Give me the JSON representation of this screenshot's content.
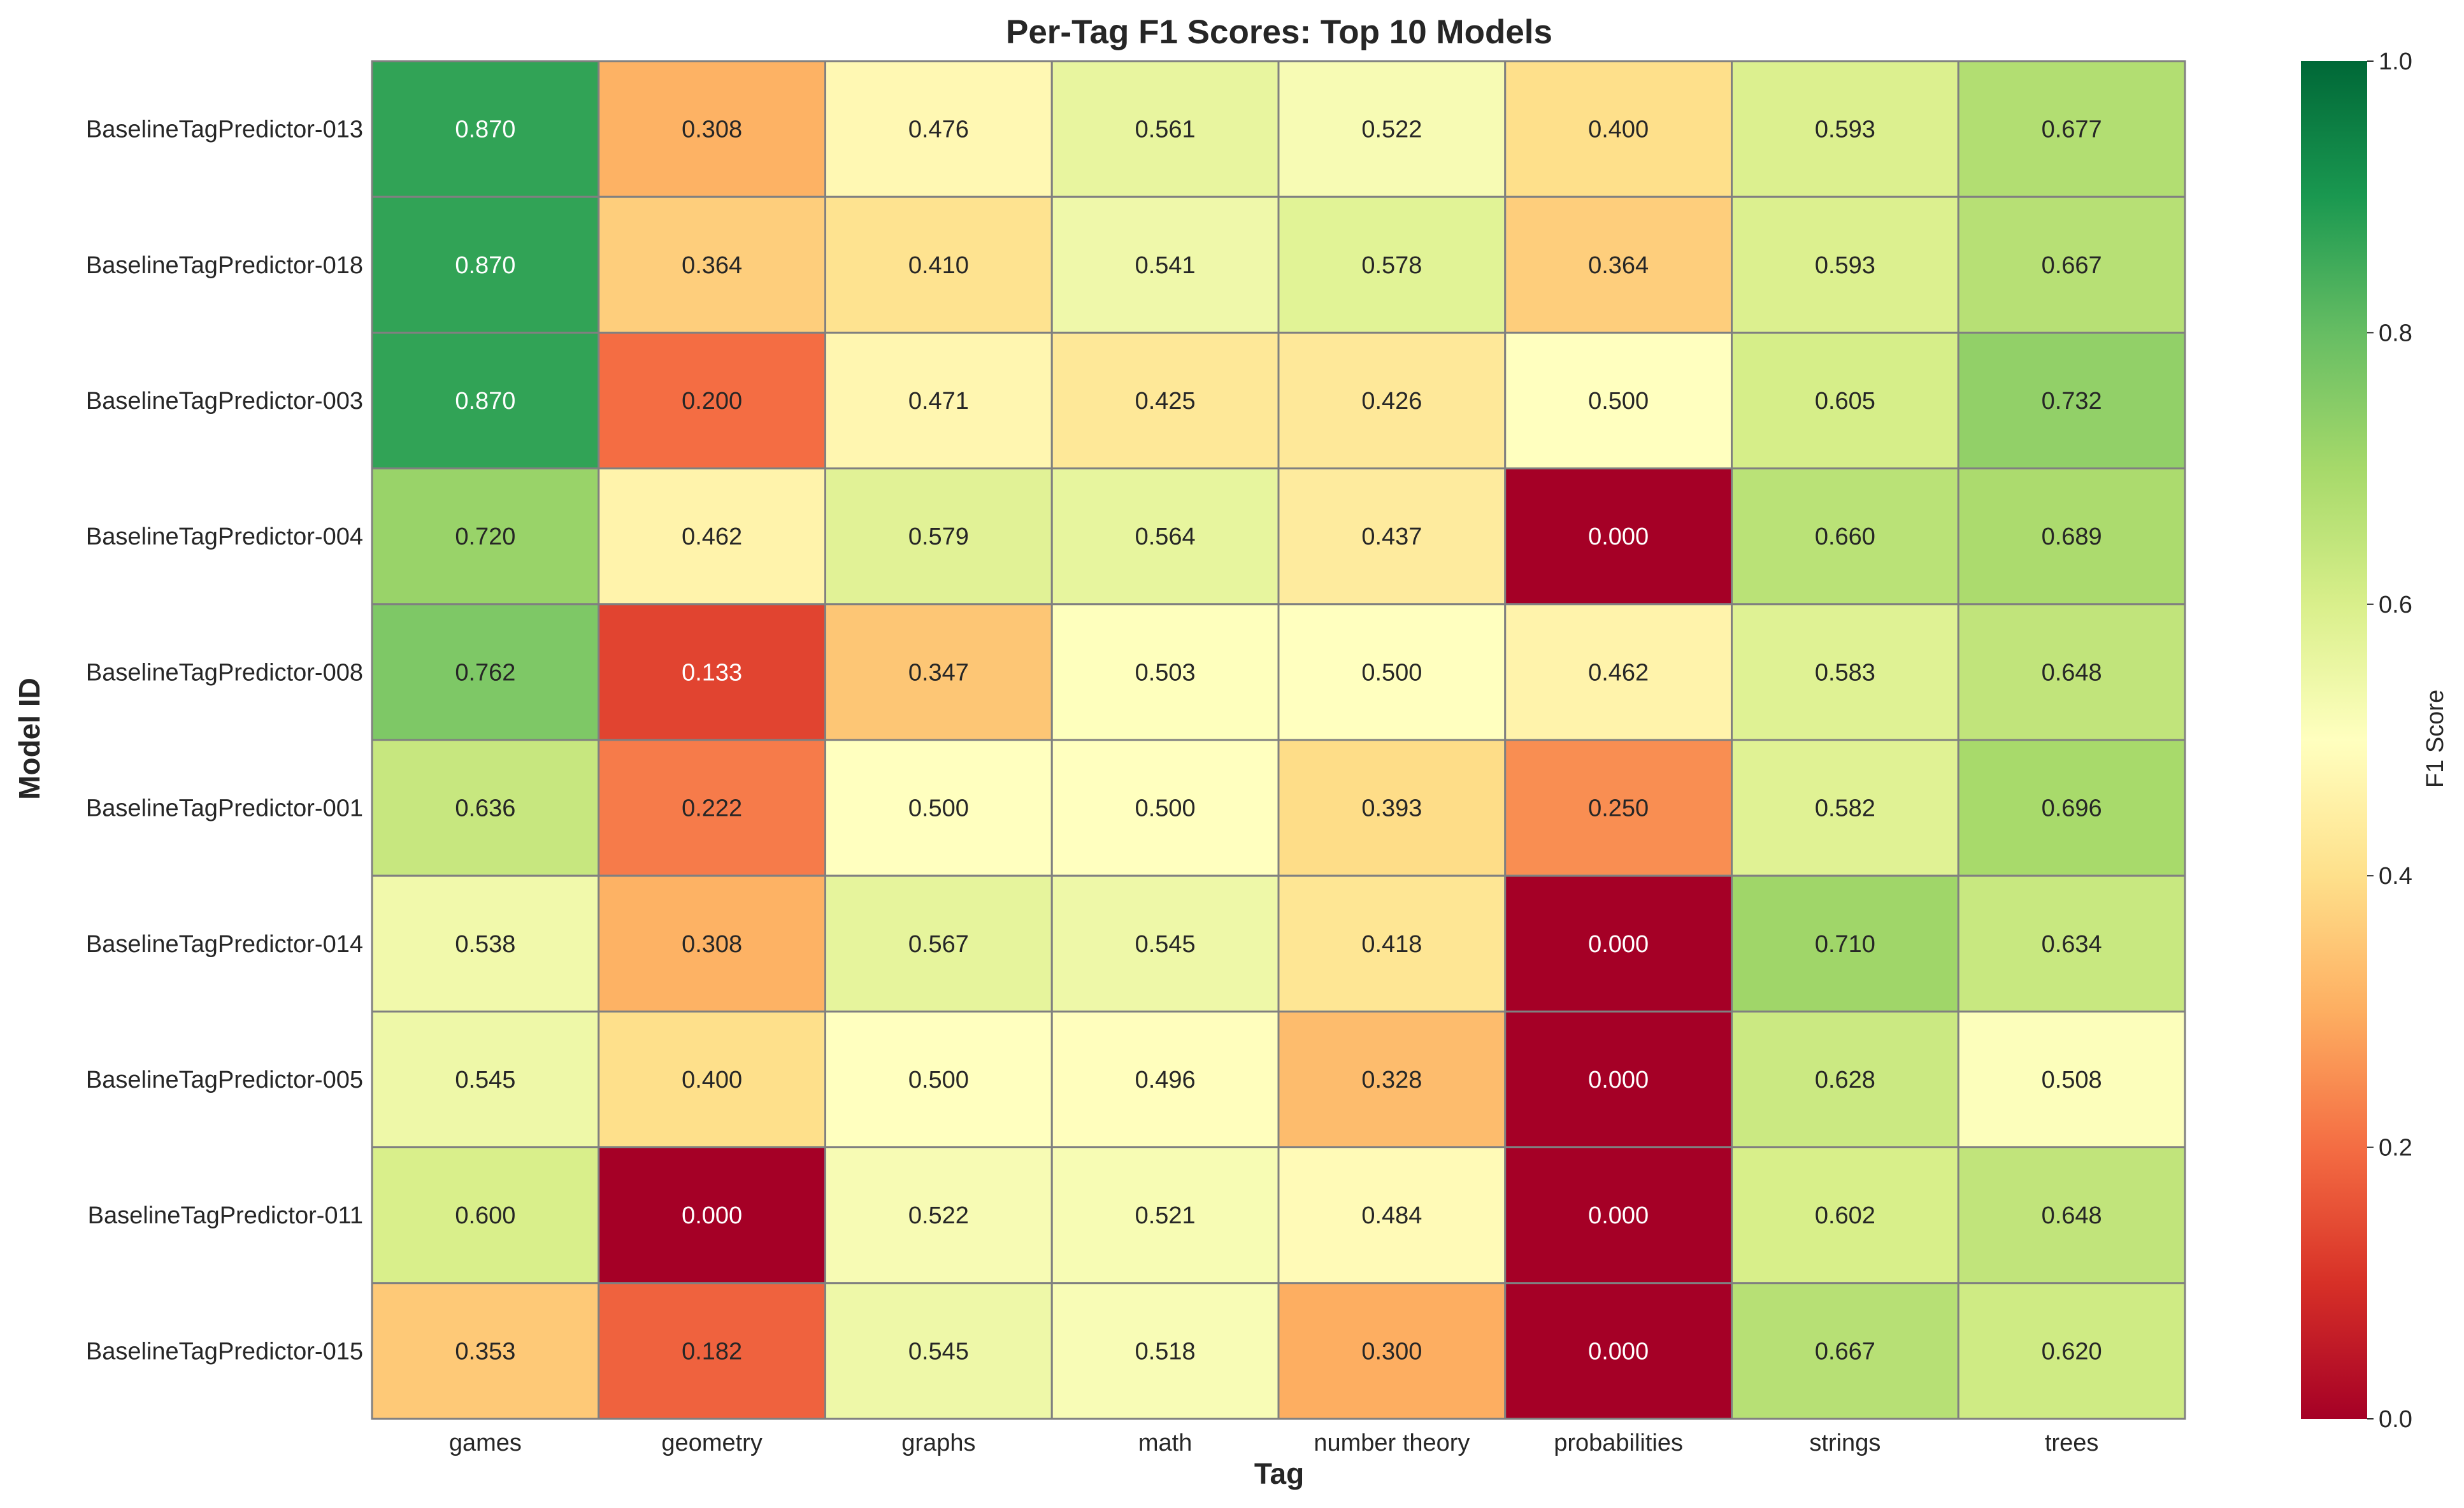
{
  "chart_data": {
    "type": "heatmap",
    "title": "Per-Tag F1 Scores: Top 10 Models",
    "xlabel": "Tag",
    "ylabel": "Model ID",
    "colorbar_label": "F1 Score",
    "colormap": "RdYlGn",
    "vmin": 0.0,
    "vmax": 1.0,
    "colorbar_ticks": [
      "0.0",
      "0.2",
      "0.4",
      "0.6",
      "0.8",
      "1.0"
    ],
    "columns": [
      "games",
      "geometry",
      "graphs",
      "math",
      "number theory",
      "probabilities",
      "strings",
      "trees"
    ],
    "rows": [
      {
        "model": "BaselineTagPredictor-013",
        "values": [
          0.87,
          0.308,
          0.476,
          0.561,
          0.522,
          0.4,
          0.593,
          0.677
        ]
      },
      {
        "model": "BaselineTagPredictor-018",
        "values": [
          0.87,
          0.364,
          0.41,
          0.541,
          0.578,
          0.364,
          0.593,
          0.667
        ]
      },
      {
        "model": "BaselineTagPredictor-003",
        "values": [
          0.87,
          0.2,
          0.471,
          0.425,
          0.426,
          0.5,
          0.605,
          0.732
        ]
      },
      {
        "model": "BaselineTagPredictor-004",
        "values": [
          0.72,
          0.462,
          0.579,
          0.564,
          0.437,
          0.0,
          0.66,
          0.689
        ]
      },
      {
        "model": "BaselineTagPredictor-008",
        "values": [
          0.762,
          0.133,
          0.347,
          0.503,
          0.5,
          0.462,
          0.583,
          0.648
        ]
      },
      {
        "model": "BaselineTagPredictor-001",
        "values": [
          0.636,
          0.222,
          0.5,
          0.5,
          0.393,
          0.25,
          0.582,
          0.696
        ]
      },
      {
        "model": "BaselineTagPredictor-014",
        "values": [
          0.538,
          0.308,
          0.567,
          0.545,
          0.418,
          0.0,
          0.71,
          0.634
        ]
      },
      {
        "model": "BaselineTagPredictor-005",
        "values": [
          0.545,
          0.4,
          0.5,
          0.496,
          0.328,
          0.0,
          0.628,
          0.508
        ]
      },
      {
        "model": "BaselineTagPredictor-011",
        "values": [
          0.6,
          0.0,
          0.522,
          0.521,
          0.484,
          0.0,
          0.602,
          0.648
        ]
      },
      {
        "model": "BaselineTagPredictor-015",
        "values": [
          0.353,
          0.182,
          0.545,
          0.518,
          0.3,
          0.0,
          0.667,
          0.62
        ]
      }
    ],
    "value_format": "3 decimals",
    "cell_border_color": "#808080"
  }
}
